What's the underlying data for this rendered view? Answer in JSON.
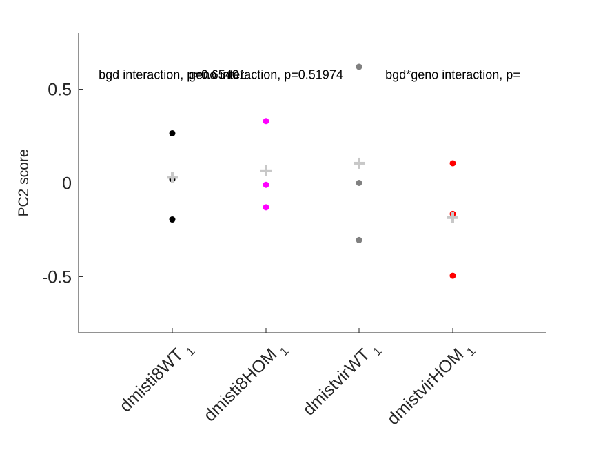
{
  "chart_data": {
    "type": "scatter",
    "ylabel": "PC2 score",
    "ylim": [
      -0.8,
      0.8
    ],
    "yticks": [
      -0.5,
      0,
      0.5
    ],
    "ytick_labels": [
      "-0.5",
      "0",
      "0.5"
    ],
    "grid": false,
    "categories": [
      {
        "name": "dmisti8WT",
        "subscript": "1"
      },
      {
        "name": "dmisti8HOM",
        "subscript": "1"
      },
      {
        "name": "dmistvirWT",
        "subscript": "1"
      },
      {
        "name": "dmistvirHOM",
        "subscript": "1"
      }
    ],
    "series": [
      {
        "category": "dmisti8WT",
        "color": "#000000",
        "values": [
          0.265,
          0.02,
          -0.195
        ]
      },
      {
        "category": "dmisti8HOM",
        "color": "#ff00ff",
        "values": [
          0.33,
          -0.01,
          -0.13
        ]
      },
      {
        "category": "dmistvirWT",
        "color": "#808080",
        "values": [
          0.62,
          0.0,
          -0.305
        ]
      },
      {
        "category": "dmistvirHOM",
        "color": "#ff0000",
        "values": [
          0.105,
          -0.165,
          -0.495
        ]
      }
    ],
    "means": {
      "color": "#c8c8c8",
      "values": [
        0.03,
        0.065,
        0.105,
        -0.185
      ]
    },
    "annotations": [
      {
        "text": "bgd interaction, p=0.65401",
        "at_category": 0,
        "y": 0.6
      },
      {
        "text": "geno interaction, p=0.51974",
        "at_category": 1,
        "y": 0.6
      },
      {
        "text": "bgd*geno interaction, p=",
        "at_category": 3,
        "y": 0.6
      }
    ]
  }
}
